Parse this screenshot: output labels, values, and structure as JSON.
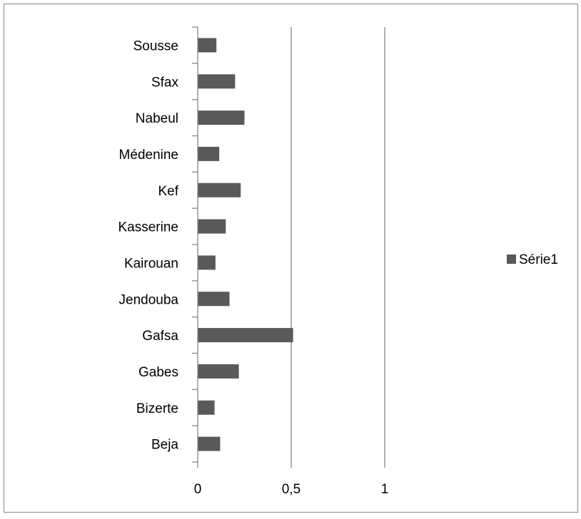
{
  "chart_data": {
    "type": "bar",
    "orientation": "horizontal",
    "title": "",
    "xlabel": "",
    "ylabel": "",
    "categories": [
      "Beja",
      "Bizerte",
      "Gabes",
      "Gafsa",
      "Jendouba",
      "Kairouan",
      "Kasserine",
      "Kef",
      "Médenine",
      "Nabeul",
      "Sfax",
      "Sousse"
    ],
    "series": [
      {
        "name": "Série1",
        "color": "#595959",
        "values": [
          0.12,
          0.09,
          0.22,
          0.51,
          0.17,
          0.095,
          0.15,
          0.23,
          0.115,
          0.25,
          0.2,
          0.1
        ]
      }
    ],
    "xlim": [
      0,
      1
    ],
    "x_ticks": [
      0,
      0.5,
      1
    ],
    "x_tick_labels": [
      "0",
      "0,5",
      "1"
    ],
    "grid": "vertical major gridlines",
    "legend_position": "right"
  }
}
